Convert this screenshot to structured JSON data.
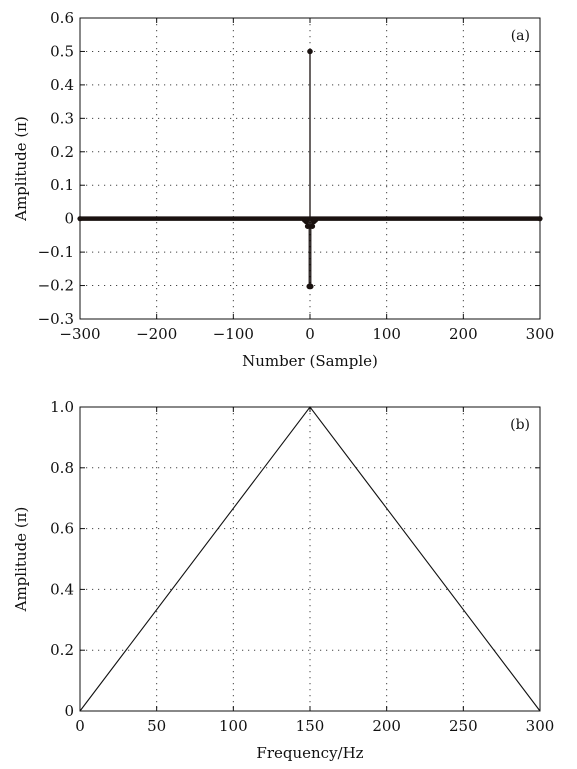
{
  "chart_data": [
    {
      "type": "stem",
      "panel_label": "(a)",
      "title": "",
      "xlabel": "Number (Sample)",
      "ylabel": "Amplitude (π)",
      "xlim": [
        -300,
        300
      ],
      "ylim": [
        -0.3,
        0.6
      ],
      "xticks": [
        -300,
        -200,
        -100,
        0,
        100,
        200,
        300
      ],
      "yticks": [
        -0.3,
        -0.2,
        -0.1,
        0,
        0.1,
        0.2,
        0.3,
        0.4,
        0.5,
        0.6
      ],
      "xtick_labels": [
        "−300",
        "−200",
        "−100",
        "0",
        "100",
        "200",
        "300"
      ],
      "ytick_labels": [
        "−0.3",
        "−0.2",
        "−0.1",
        "0",
        "0.1",
        "0.2",
        "0.3",
        "0.4",
        "0.5",
        "0.6"
      ],
      "grid": true,
      "stems": [
        {
          "x": 0,
          "y": 0.5
        },
        {
          "x": -1,
          "y": -0.2026
        },
        {
          "x": 1,
          "y": -0.2026
        },
        {
          "x": -3,
          "y": -0.0225
        },
        {
          "x": 3,
          "y": -0.0225
        },
        {
          "x": -5,
          "y": -0.0081
        },
        {
          "x": 5,
          "y": -0.0081
        },
        {
          "x": -7,
          "y": -0.0041
        },
        {
          "x": 7,
          "y": -0.0041
        }
      ],
      "baseline_range": [
        -300,
        300
      ],
      "baseline_value": 0
    },
    {
      "type": "line",
      "panel_label": "(b)",
      "title": "",
      "xlabel": "Frequency/Hz",
      "ylabel": "Amplitude (π)",
      "xlim": [
        0,
        300
      ],
      "ylim": [
        0,
        1.0
      ],
      "xticks": [
        0,
        50,
        100,
        150,
        200,
        250,
        300
      ],
      "yticks": [
        0,
        0.2,
        0.4,
        0.6,
        0.8,
        1.0
      ],
      "xtick_labels": [
        "0",
        "50",
        "100",
        "150",
        "200",
        "250",
        "300"
      ],
      "ytick_labels": [
        "0",
        "0.2",
        "0.4",
        "0.6",
        "0.8",
        "1.0"
      ],
      "grid": true,
      "x": [
        0,
        150,
        300
      ],
      "y": [
        0,
        1.0,
        0
      ]
    }
  ]
}
